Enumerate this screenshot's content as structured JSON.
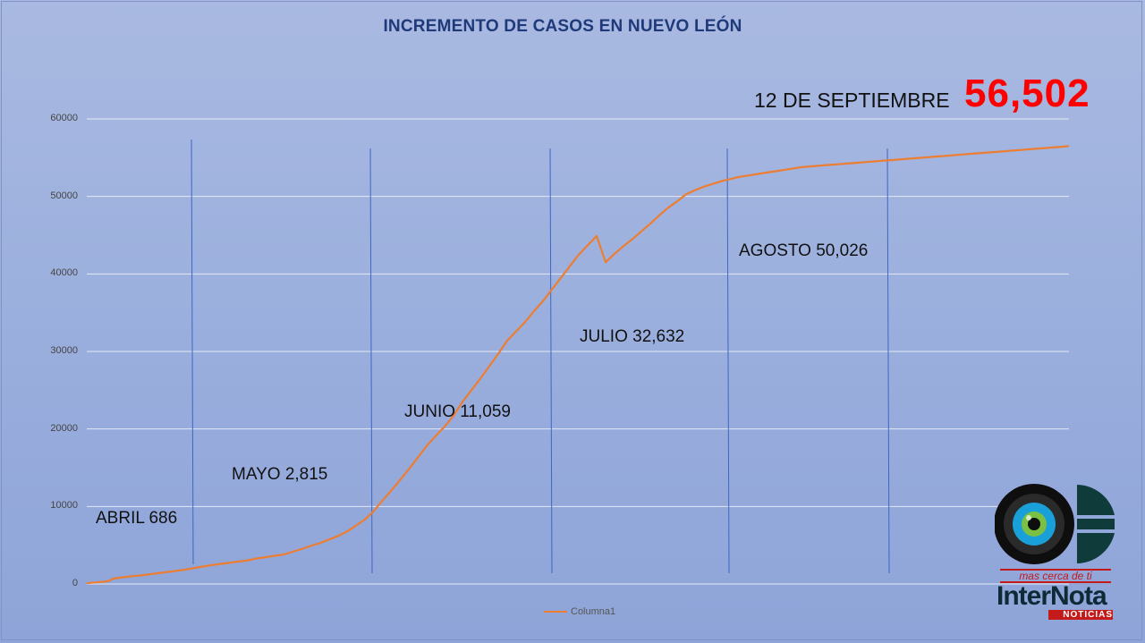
{
  "header": {
    "title": "INCREMENTO DE CASOS EN NUEVO LEÓN",
    "date_label": "12 DE SEPTIEMBRE",
    "total_cases": "56,502"
  },
  "chart_data": {
    "type": "line",
    "title": "INCREMENTO DE CASOS EN NUEVO LEÓN",
    "xlabel": "",
    "ylabel": "",
    "ylim": [
      0,
      60000
    ],
    "yticks": [
      "0",
      "10000",
      "20000",
      "30000",
      "40000",
      "50000",
      "60000"
    ],
    "grid": true,
    "legend_position": "bottom",
    "series": [
      {
        "name": "Columna1",
        "color": "#ed7d31",
        "x": [
          0,
          5,
          10,
          15,
          20,
          25,
          30,
          40,
          50,
          60,
          70,
          80,
          90,
          100,
          110,
          120,
          130,
          140,
          150,
          160,
          170,
          180,
          190,
          200,
          210,
          220,
          230,
          240,
          250,
          260,
          270,
          280,
          290,
          300,
          310,
          320,
          330,
          340,
          350,
          360,
          370,
          380,
          390,
          400,
          410,
          420,
          430,
          440,
          450,
          460,
          470,
          480,
          490,
          500,
          510,
          520,
          530,
          540,
          550,
          560,
          570,
          580,
          590,
          600,
          610,
          620,
          630,
          640,
          650,
          660,
          670,
          680,
          690,
          700,
          710,
          720,
          730,
          740,
          750,
          760,
          770,
          780,
          790,
          800,
          810,
          820,
          830,
          840,
          850,
          860,
          870,
          880,
          890,
          900,
          910,
          920,
          930,
          940,
          950,
          960,
          970,
          980,
          990,
          1000,
          1010,
          1020,
          1030,
          1040,
          1050,
          1060,
          1070,
          1080,
          1090,
          1098
        ],
        "values": [
          100,
          150,
          200,
          250,
          300,
          400,
          700,
          850,
          1000,
          1100,
          1250,
          1400,
          1550,
          1700,
          1850,
          2050,
          2250,
          2450,
          2600,
          2750,
          2900,
          3050,
          3300,
          3450,
          3650,
          3800,
          4150,
          4500,
          4900,
          5250,
          5700,
          6150,
          6700,
          7450,
          8250,
          9300,
          10700,
          12000,
          13400,
          14800,
          16300,
          17800,
          19100,
          20300,
          21700,
          23500,
          25000,
          26500,
          28100,
          29700,
          31400,
          32600,
          33800,
          35200,
          36500,
          38000,
          39500,
          41000,
          42500,
          43700,
          44900,
          46000,
          47200,
          48300,
          49300,
          50400,
          51500,
          52700,
          53800,
          54700,
          55700,
          56300,
          56800,
          57200,
          57600,
          57900,
          58200,
          58400,
          58600,
          58800,
          59000,
          59200,
          59400,
          59600,
          59700,
          59800,
          59900,
          60000,
          60100,
          60200,
          60300,
          60400,
          60500,
          60600,
          60700,
          60800,
          60900,
          61000,
          61100,
          61200,
          61300,
          61400,
          61500,
          61600,
          61700,
          61800,
          61900,
          62000,
          62100,
          62200,
          62300,
          62400,
          62500,
          62600
        ]
      }
    ],
    "annotations": [
      {
        "label": "ABRIL 686",
        "anchor": "abril"
      },
      {
        "label": "MAYO 2,815",
        "anchor": "mayo"
      },
      {
        "label": "JUNIO 11,059",
        "anchor": "junio"
      },
      {
        "label": "JULIO 32,632",
        "anchor": "julio"
      },
      {
        "label": "AGOSTO 50,026",
        "anchor": "agosto"
      }
    ]
  },
  "legend": {
    "label": "Columna1",
    "color": "#ed7d31"
  },
  "logo": {
    "tagline": "mas cerca de ti",
    "name": "InterNota",
    "subtitle": "NOTICIAS"
  }
}
